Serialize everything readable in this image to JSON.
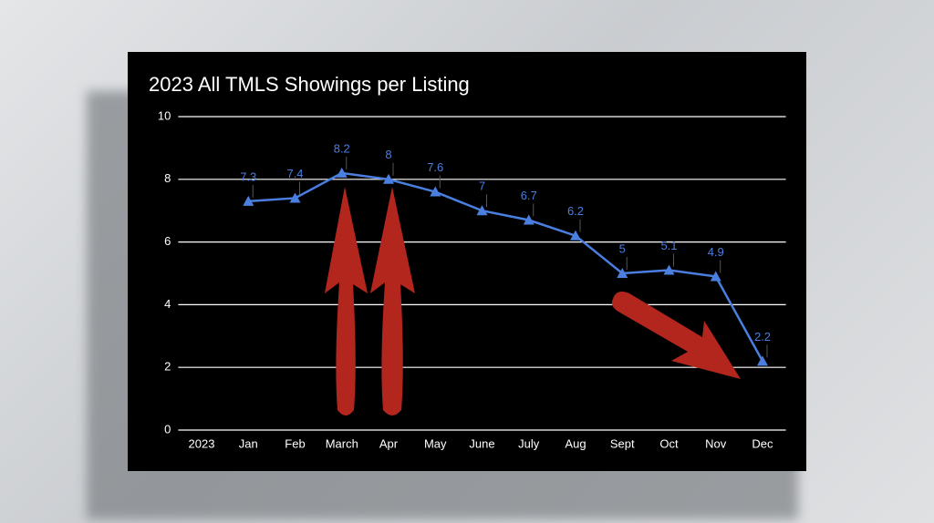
{
  "chart_data": {
    "type": "line",
    "title": "2023 All TMLS Showings per Listing",
    "categories": [
      "2023",
      "Jan",
      "Feb",
      "March",
      "Apr",
      "May",
      "June",
      "July",
      "Aug",
      "Sept",
      "Oct",
      "Nov",
      "Dec"
    ],
    "values": [
      null,
      7.3,
      7.4,
      8.2,
      8,
      7.6,
      7,
      6.7,
      6.2,
      5,
      5.1,
      4.9,
      2.2
    ],
    "color": "#4a7fe0",
    "ylim": [
      0,
      10
    ],
    "yticks": [
      0,
      2,
      4,
      6,
      8,
      10
    ],
    "grid": true
  }
}
